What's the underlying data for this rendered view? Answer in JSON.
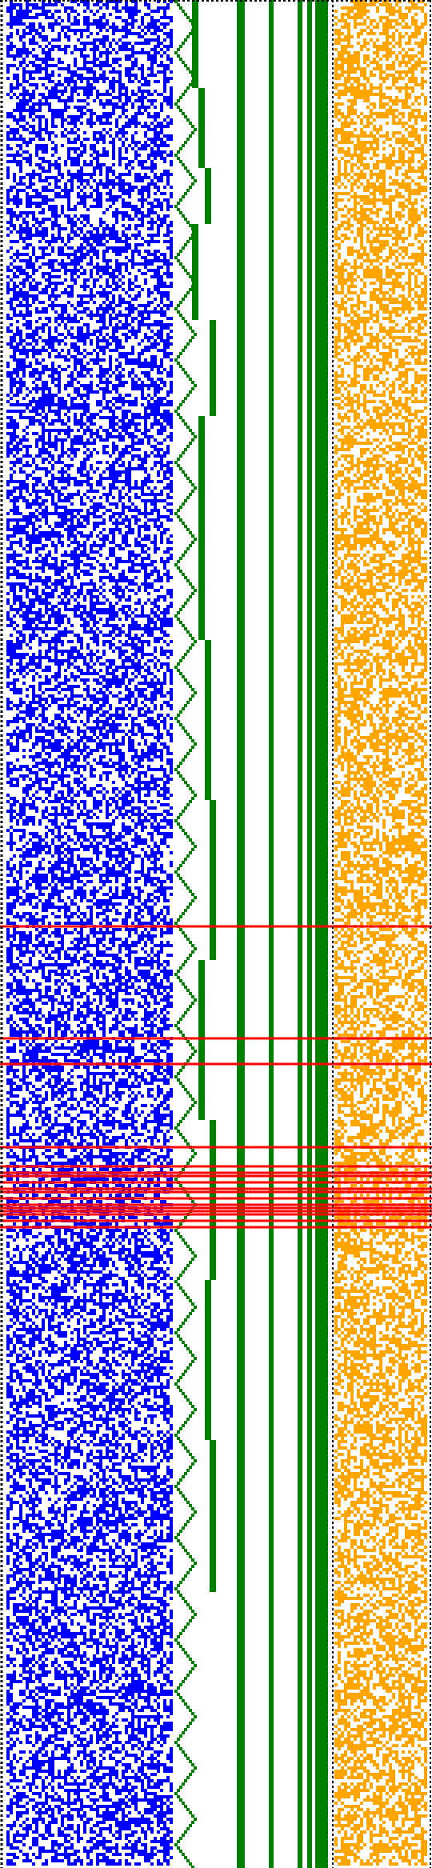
{
  "visualization": {
    "description_kind": "binary state-transition raster",
    "palette": {
      "background": "#ffffff",
      "dots": "#000000",
      "left_block": "#0000ff",
      "stair_and_bars": "#008000",
      "right_block": "#ffa500",
      "marker_lines": "#ff0000"
    },
    "cells": {
      "rows": 580,
      "left_block_columns": 35,
      "right_block_columns": 20
    },
    "persistent_bars": 6,
    "red_marker_rows": [
      289,
      324,
      332,
      358,
      364,
      366,
      367,
      369,
      371,
      372,
      374,
      376,
      377,
      378,
      379,
      381,
      383
    ]
  }
}
